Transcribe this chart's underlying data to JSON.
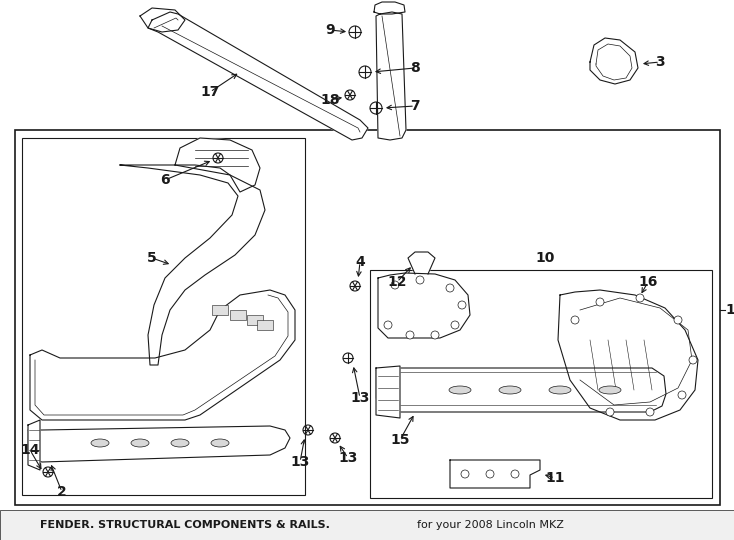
{
  "title": "FENDER. STRUCTURAL COMPONENTS & RAILS.",
  "subtitle": "for your 2008 Lincoln MKZ",
  "bg_color": "#ffffff",
  "line_color": "#1a1a1a",
  "label_fontsize": 10,
  "fig_width": 7.34,
  "fig_height": 5.4,
  "dpi": 100
}
